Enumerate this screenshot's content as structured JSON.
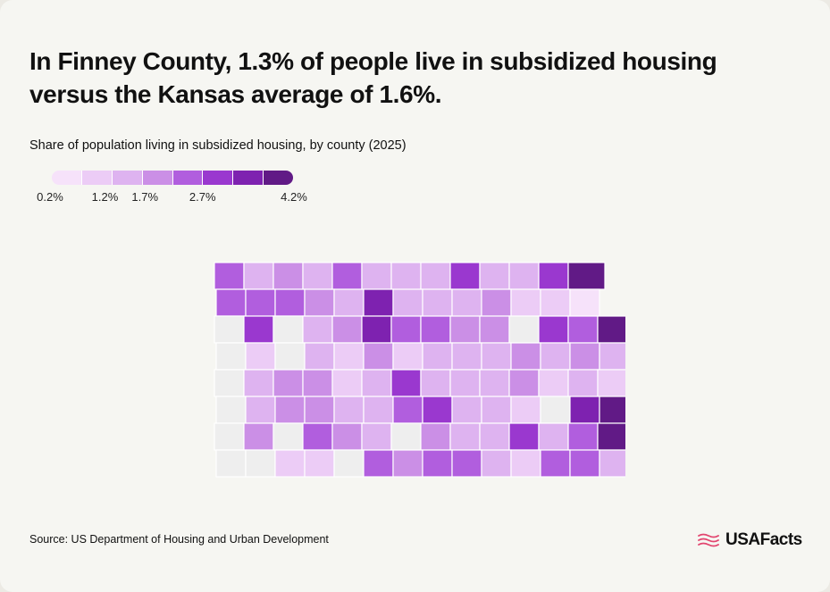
{
  "headline": {
    "line1": "In Finney County, 1.3% of people live in subsidized housing",
    "line2": "versus the Kansas average of 1.6%."
  },
  "subtitle": "Share of population living in subsidized housing, by county (2025)",
  "legend": {
    "colors": [
      "#f6e2fa",
      "#ecccf6",
      "#deb3f0",
      "#cb8fe6",
      "#b15ede",
      "#9a38cf",
      "#7e22b0",
      "#611a86"
    ],
    "labels": [
      {
        "text": "0.2%",
        "at": 0
      },
      {
        "text": "1.2%",
        "at": 2
      },
      {
        "text": "1.7%",
        "at": 3
      },
      {
        "text": "2.7%",
        "at": 5
      },
      {
        "text": "4.2%",
        "at": 8
      }
    ]
  },
  "map": {
    "no_data_color": "#eeeeee",
    "grid_levels": [
      [
        4,
        2,
        3,
        2,
        4,
        2,
        2,
        2,
        5,
        2,
        2,
        5,
        7,
        null,
        null
      ],
      [
        4,
        4,
        4,
        3,
        2,
        6,
        2,
        2,
        2,
        3,
        1,
        1,
        0,
        null,
        null
      ],
      [
        -1,
        5,
        -1,
        2,
        3,
        6,
        4,
        4,
        3,
        3,
        -1,
        5,
        4,
        7,
        null
      ],
      [
        -1,
        1,
        -1,
        2,
        1,
        3,
        1,
        2,
        2,
        2,
        3,
        2,
        3,
        2,
        null
      ],
      [
        -1,
        2,
        3,
        3,
        1,
        2,
        5,
        2,
        2,
        2,
        3,
        1,
        2,
        1,
        null
      ],
      [
        -1,
        2,
        3,
        3,
        2,
        2,
        4,
        5,
        2,
        2,
        1,
        -1,
        6,
        7,
        null
      ],
      [
        -1,
        3,
        -1,
        4,
        3,
        2,
        -1,
        3,
        2,
        2,
        5,
        2,
        4,
        7,
        null
      ],
      [
        -1,
        -1,
        1,
        1,
        -1,
        4,
        3,
        4,
        4,
        2,
        1,
        4,
        4,
        2,
        null
      ]
    ]
  },
  "source": "Source: US Department of Housing and Urban Development",
  "brand": {
    "name": "USAFacts",
    "accent": "#e2456f"
  }
}
